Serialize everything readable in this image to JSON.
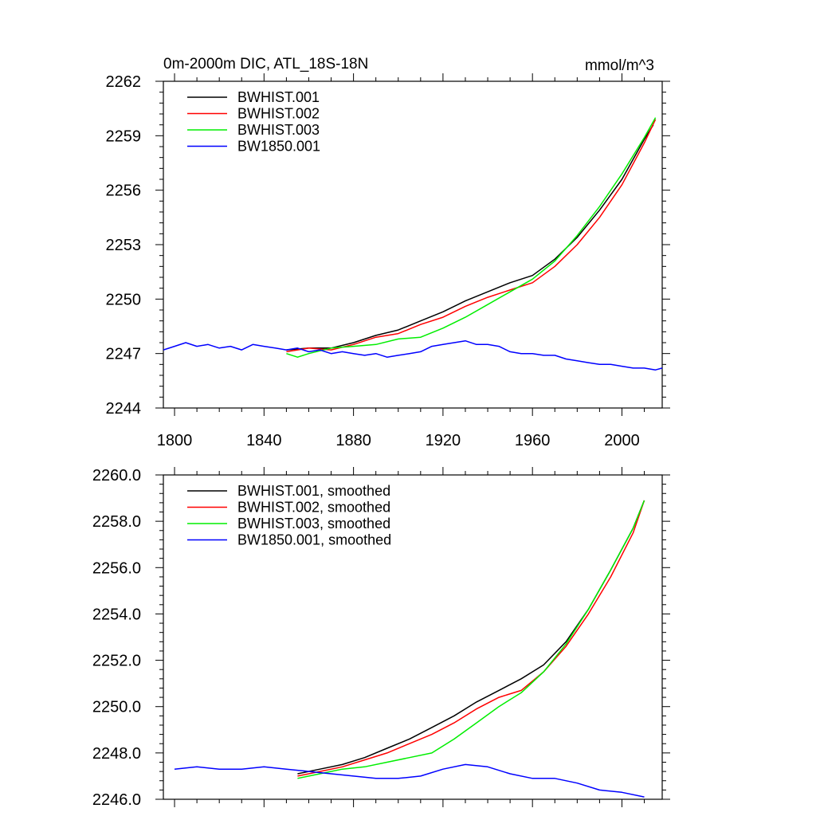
{
  "chart_data": [
    {
      "type": "line",
      "title_left": "0m-2000m DIC, ATL_18S-18N",
      "title_right": "mmol/m^3",
      "xlabel": "",
      "ylabel": "",
      "xlim": [
        1795,
        2018
      ],
      "ylim": [
        2244,
        2262
      ],
      "x_ticks": [
        1800,
        1840,
        1880,
        1920,
        1960,
        2000
      ],
      "x_tick_labels": [
        "1800",
        "1840",
        "1880",
        "1920",
        "1960",
        "2000"
      ],
      "y_ticks": [
        2244,
        2247,
        2250,
        2253,
        2256,
        2259,
        2262
      ],
      "y_tick_labels": [
        "2244",
        "2247",
        "2250",
        "2253",
        "2256",
        "2259",
        "2262"
      ],
      "legend_position": "top-left",
      "series": [
        {
          "name": "BWHIST.001",
          "color": "#000000",
          "x": [
            1850,
            1860,
            1870,
            1880,
            1890,
            1900,
            1910,
            1920,
            1930,
            1940,
            1950,
            1960,
            1970,
            1980,
            1990,
            2000,
            2010,
            2014
          ],
          "y": [
            2247.2,
            2247.3,
            2247.3,
            2247.6,
            2248.0,
            2248.3,
            2248.8,
            2249.3,
            2249.9,
            2250.4,
            2250.9,
            2251.3,
            2252.2,
            2253.4,
            2254.9,
            2256.6,
            2258.8,
            2259.6
          ]
        },
        {
          "name": "BWHIST.002",
          "color": "#ff0000",
          "x": [
            1850,
            1860,
            1870,
            1880,
            1890,
            1900,
            1910,
            1920,
            1930,
            1940,
            1950,
            1960,
            1970,
            1980,
            1990,
            2000,
            2010,
            2015
          ],
          "y": [
            2247.1,
            2247.3,
            2247.2,
            2247.5,
            2247.9,
            2248.1,
            2248.6,
            2249.0,
            2249.6,
            2250.1,
            2250.5,
            2250.9,
            2251.8,
            2253.0,
            2254.5,
            2256.3,
            2258.6,
            2259.9
          ]
        },
        {
          "name": "BWHIST.003",
          "color": "#00ee00",
          "x": [
            1850,
            1855,
            1860,
            1870,
            1880,
            1890,
            1900,
            1910,
            1920,
            1930,
            1940,
            1950,
            1960,
            1970,
            1980,
            1990,
            2000,
            2010,
            2015
          ],
          "y": [
            2247.0,
            2246.8,
            2247.0,
            2247.3,
            2247.4,
            2247.5,
            2247.8,
            2247.9,
            2248.4,
            2249.0,
            2249.7,
            2250.4,
            2251.1,
            2252.1,
            2253.5,
            2255.1,
            2256.9,
            2258.9,
            2260.0
          ]
        },
        {
          "name": "BW1850.001",
          "color": "#0000ff",
          "x": [
            1795,
            1800,
            1805,
            1810,
            1815,
            1820,
            1825,
            1830,
            1835,
            1840,
            1845,
            1850,
            1855,
            1860,
            1865,
            1870,
            1875,
            1880,
            1885,
            1890,
            1895,
            1900,
            1905,
            1910,
            1915,
            1920,
            1925,
            1930,
            1935,
            1940,
            1945,
            1950,
            1955,
            1960,
            1965,
            1970,
            1975,
            1980,
            1985,
            1990,
            1995,
            2000,
            2005,
            2010,
            2015,
            2018
          ],
          "y": [
            2247.2,
            2247.4,
            2247.6,
            2247.4,
            2247.5,
            2247.3,
            2247.4,
            2247.2,
            2247.5,
            2247.4,
            2247.3,
            2247.2,
            2247.3,
            2247.1,
            2247.2,
            2247.0,
            2247.1,
            2247.0,
            2246.9,
            2247.0,
            2246.8,
            2246.9,
            2247.0,
            2247.1,
            2247.4,
            2247.5,
            2247.6,
            2247.7,
            2247.5,
            2247.5,
            2247.4,
            2247.1,
            2247.0,
            2247.0,
            2246.9,
            2246.9,
            2246.7,
            2246.6,
            2246.5,
            2246.4,
            2246.4,
            2246.3,
            2246.2,
            2246.2,
            2246.1,
            2246.2
          ]
        }
      ]
    },
    {
      "type": "line",
      "title_left": "",
      "title_right": "",
      "xlabel": "",
      "ylabel": "",
      "xlim": [
        1795,
        2018
      ],
      "ylim": [
        2246,
        2260
      ],
      "x_ticks": [
        1800,
        1840,
        1880,
        1920,
        1960,
        2000
      ],
      "x_tick_labels": [],
      "y_ticks": [
        2246,
        2248,
        2250,
        2252,
        2254,
        2256,
        2258,
        2260
      ],
      "y_tick_labels": [
        "2246.0",
        "2248.0",
        "2250.0",
        "2252.0",
        "2254.0",
        "2256.0",
        "2258.0",
        "2260.0"
      ],
      "legend_position": "top-left",
      "series": [
        {
          "name": "BWHIST.001, smoothed",
          "color": "#000000",
          "x": [
            1855,
            1865,
            1875,
            1885,
            1895,
            1905,
            1915,
            1925,
            1935,
            1945,
            1955,
            1965,
            1975,
            1985,
            1995,
            2005,
            2010
          ],
          "y": [
            2247.1,
            2247.3,
            2247.5,
            2247.8,
            2248.2,
            2248.6,
            2249.1,
            2249.6,
            2250.2,
            2250.7,
            2251.2,
            2251.8,
            2252.8,
            2254.2,
            2255.9,
            2257.7,
            2258.9
          ]
        },
        {
          "name": "BWHIST.002, smoothed",
          "color": "#ff0000",
          "x": [
            1855,
            1865,
            1875,
            1885,
            1895,
            1905,
            1915,
            1925,
            1935,
            1945,
            1955,
            1965,
            1975,
            1985,
            1995,
            2005,
            2010
          ],
          "y": [
            2247.0,
            2247.2,
            2247.4,
            2247.7,
            2248.0,
            2248.4,
            2248.8,
            2249.3,
            2249.9,
            2250.4,
            2250.7,
            2251.5,
            2252.6,
            2254.0,
            2255.6,
            2257.5,
            2258.9
          ]
        },
        {
          "name": "BWHIST.003, smoothed",
          "color": "#00ee00",
          "x": [
            1855,
            1865,
            1875,
            1885,
            1895,
            1905,
            1915,
            1925,
            1935,
            1945,
            1955,
            1965,
            1975,
            1985,
            1995,
            2005,
            2010
          ],
          "y": [
            2246.9,
            2247.1,
            2247.3,
            2247.4,
            2247.6,
            2247.8,
            2248.0,
            2248.6,
            2249.3,
            2250.0,
            2250.6,
            2251.5,
            2252.7,
            2254.2,
            2255.9,
            2257.7,
            2258.9
          ]
        },
        {
          "name": "BW1850.001, smoothed",
          "color": "#0000ff",
          "x": [
            1800,
            1810,
            1820,
            1830,
            1840,
            1850,
            1860,
            1870,
            1880,
            1890,
            1900,
            1910,
            1920,
            1930,
            1940,
            1950,
            1960,
            1970,
            1980,
            1990,
            2000,
            2010
          ],
          "y": [
            2247.3,
            2247.4,
            2247.3,
            2247.3,
            2247.4,
            2247.3,
            2247.2,
            2247.1,
            2247.0,
            2246.9,
            2246.9,
            2247.0,
            2247.3,
            2247.5,
            2247.4,
            2247.1,
            2246.9,
            2246.9,
            2246.7,
            2246.4,
            2246.3,
            2246.1
          ]
        }
      ]
    }
  ]
}
